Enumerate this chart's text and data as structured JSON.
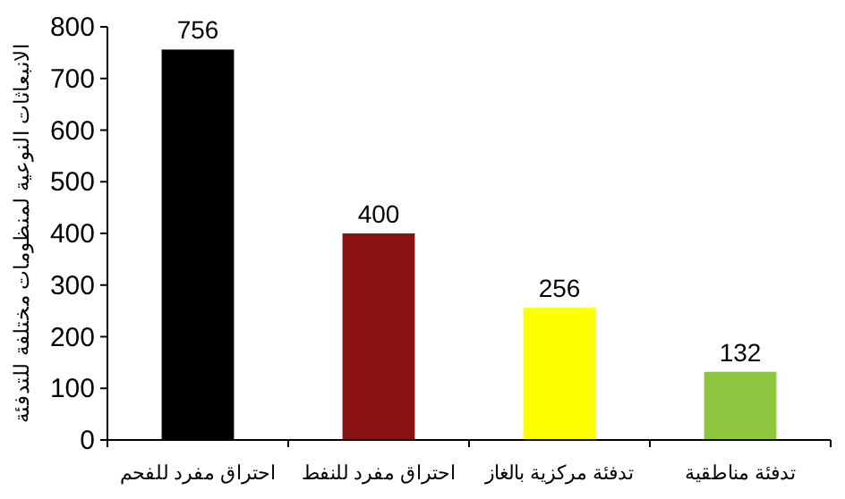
{
  "chart_data": {
    "type": "bar",
    "ylabel": "الانبعاثات النوعية لمنظومات مختلفة للتدفئة",
    "categories": [
      "احتراق مفرد للفحم",
      "احتراق مفرد للنفط",
      "تدفئة مركزية بالغاز",
      "تدفئة مناطقية"
    ],
    "values": [
      756,
      400,
      256,
      132
    ],
    "colors": [
      "#000000",
      "#8b1212",
      "#ffff00",
      "#8dc63f"
    ],
    "ylim": [
      0,
      800
    ],
    "yticks": [
      0,
      100,
      200,
      300,
      400,
      500,
      600,
      700,
      800
    ],
    "data_labels": true,
    "grid": false
  }
}
